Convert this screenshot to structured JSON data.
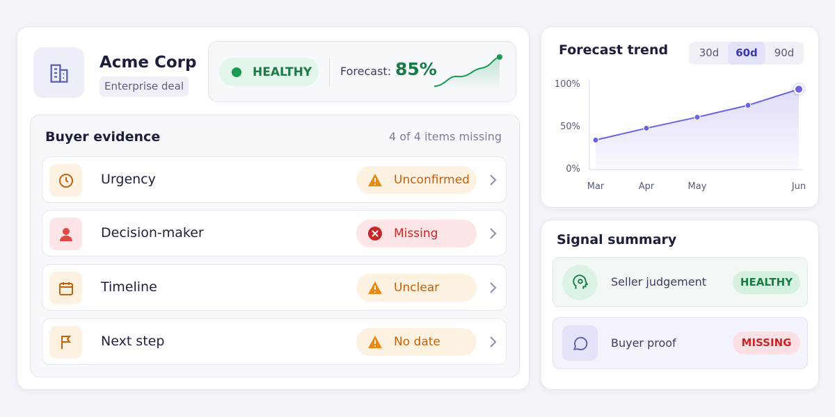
{
  "deal": {
    "name": "Acme Corp",
    "tag": "Enterprise deal",
    "status": "HEALTHY",
    "forecast_label": "Forecast:",
    "forecast_value": "85%"
  },
  "evidence": {
    "title": "Buyer evidence",
    "summary": "4 of 4 items missing",
    "items": [
      {
        "label": "Urgency",
        "status": "Unconfirmed",
        "color": "#c2610c"
      },
      {
        "label": "Decision-maker",
        "status": "Missing",
        "color": "#c62828"
      },
      {
        "label": "Timeline",
        "status": "Unclear",
        "color": "#c2610c"
      },
      {
        "label": "Next step",
        "status": "No date",
        "color": "#c2610c"
      }
    ]
  },
  "trend": {
    "title": "Forecast trend",
    "ranges": [
      "30d",
      "60d",
      "90d"
    ],
    "selected_range": 1,
    "chart_data": {
      "type": "line",
      "categories": [
        "Mar",
        "Apr",
        "May",
        null,
        "Jun"
      ],
      "values": [
        34,
        48,
        61,
        75,
        94
      ],
      "color": "#6b63e0",
      "ylim": [
        0,
        100
      ],
      "yticks": [
        {
          "value": 0,
          "label": "0%"
        },
        {
          "value": 50,
          "label": "50%"
        },
        {
          "value": 100,
          "label": "100%"
        }
      ],
      "grid": false
    }
  },
  "signals": {
    "title": "Signal summary",
    "items": [
      {
        "label": "Seller judgement",
        "status": "HEALTHY",
        "color": "#1b7a45"
      },
      {
        "label": "Buyer proof",
        "status": "MISSING",
        "color": "#c62828"
      }
    ]
  }
}
